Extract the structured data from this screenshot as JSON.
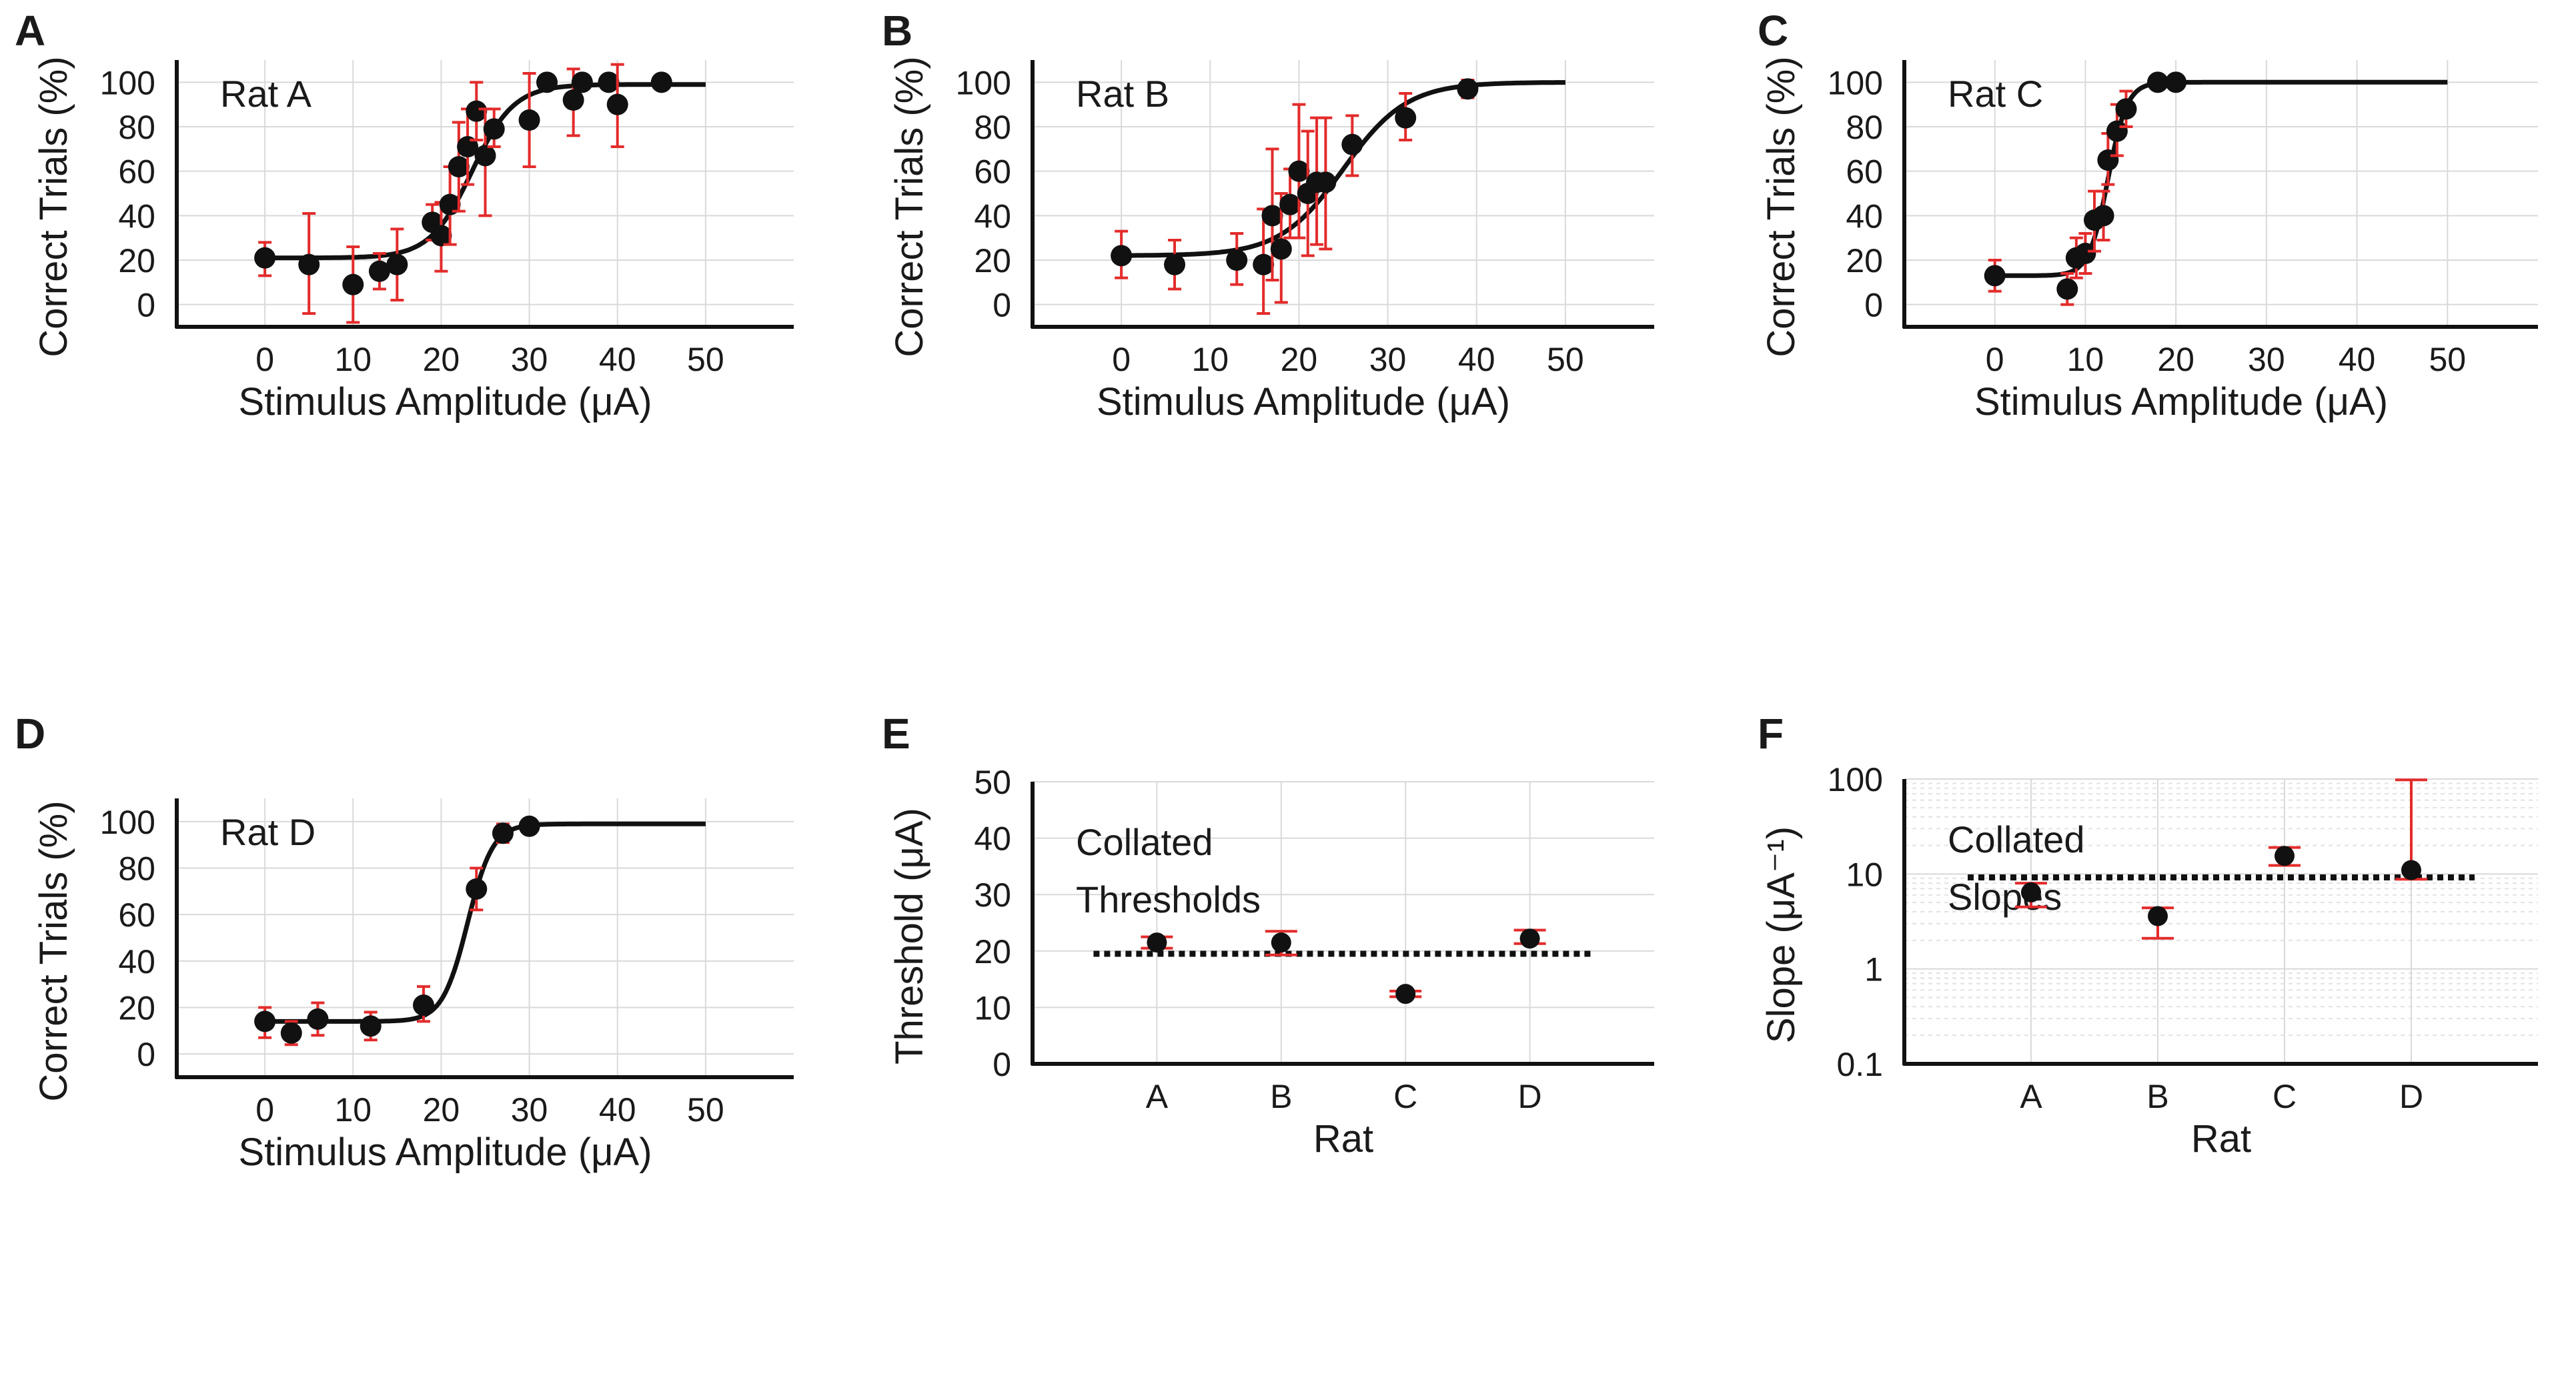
{
  "figure": {
    "panel_labels": [
      "A",
      "B",
      "C",
      "D",
      "E",
      "F"
    ],
    "colors": {
      "marker": "#111111",
      "fit_line": "#111111",
      "error_bar": "#e32b2b",
      "grid": "#d9d9d9",
      "mean_line": "#111111"
    }
  },
  "chart_data": [
    {
      "panel": "A",
      "type": "scatter",
      "annotation": "Rat A",
      "xlabel": "Stimulus Amplitude (μA)",
      "ylabel": "Correct Trials (%)",
      "xlim": [
        -10,
        60
      ],
      "ylim": [
        -10,
        110
      ],
      "xticks": [
        0,
        10,
        20,
        30,
        40,
        50
      ],
      "yticks": [
        0,
        20,
        40,
        60,
        80,
        100
      ],
      "points": [
        {
          "x": 0,
          "y": 21,
          "lo": 13,
          "hi": 28
        },
        {
          "x": 5,
          "y": 18,
          "lo": -4,
          "hi": 41
        },
        {
          "x": 10,
          "y": 9,
          "lo": -8,
          "hi": 26
        },
        {
          "x": 13,
          "y": 15,
          "lo": 7,
          "hi": 23
        },
        {
          "x": 15,
          "y": 18,
          "lo": 2,
          "hi": 34
        },
        {
          "x": 19,
          "y": 37,
          "lo": 29,
          "hi": 45
        },
        {
          "x": 20,
          "y": 31,
          "lo": 15,
          "hi": 46
        },
        {
          "x": 21,
          "y": 45,
          "lo": 27,
          "hi": 62
        },
        {
          "x": 22,
          "y": 62,
          "lo": 42,
          "hi": 82
        },
        {
          "x": 23,
          "y": 71,
          "lo": 54,
          "hi": 88
        },
        {
          "x": 24,
          "y": 87,
          "lo": 74,
          "hi": 100
        },
        {
          "x": 25,
          "y": 67,
          "lo": 40,
          "hi": 88
        },
        {
          "x": 26,
          "y": 79,
          "lo": 71,
          "hi": 88
        },
        {
          "x": 30,
          "y": 83,
          "lo": 62,
          "hi": 104
        },
        {
          "x": 32,
          "y": 100
        },
        {
          "x": 35,
          "y": 92,
          "lo": 76,
          "hi": 106
        },
        {
          "x": 36,
          "y": 100
        },
        {
          "x": 39,
          "y": 100
        },
        {
          "x": 40,
          "y": 90,
          "lo": 71,
          "hi": 108
        },
        {
          "x": 45,
          "y": 100
        }
      ],
      "fit": {
        "base": 21,
        "top": 99,
        "x50": 23.5,
        "k": 0.42,
        "x_range": [
          0,
          50
        ]
      }
    },
    {
      "panel": "B",
      "type": "scatter",
      "annotation": "Rat B",
      "xlabel": "Stimulus Amplitude (μA)",
      "ylabel": "Correct Trials (%)",
      "xlim": [
        -10,
        60
      ],
      "ylim": [
        -10,
        110
      ],
      "xticks": [
        0,
        10,
        20,
        30,
        40,
        50
      ],
      "yticks": [
        0,
        20,
        40,
        60,
        80,
        100
      ],
      "points": [
        {
          "x": 0,
          "y": 22,
          "lo": 12,
          "hi": 33
        },
        {
          "x": 6,
          "y": 18,
          "lo": 7,
          "hi": 29
        },
        {
          "x": 13,
          "y": 20,
          "lo": 9,
          "hi": 32
        },
        {
          "x": 16,
          "y": 18,
          "lo": -4,
          "hi": 43
        },
        {
          "x": 17,
          "y": 40,
          "lo": 11,
          "hi": 70
        },
        {
          "x": 18,
          "y": 25,
          "lo": 1,
          "hi": 50
        },
        {
          "x": 19,
          "y": 45,
          "lo": 30,
          "hi": 61
        },
        {
          "x": 20,
          "y": 60,
          "lo": 30,
          "hi": 90
        },
        {
          "x": 21,
          "y": 50,
          "lo": 22,
          "hi": 78
        },
        {
          "x": 22,
          "y": 55,
          "lo": 27,
          "hi": 84
        },
        {
          "x": 23,
          "y": 55,
          "lo": 25,
          "hi": 84
        },
        {
          "x": 26,
          "y": 72,
          "lo": 58,
          "hi": 85
        },
        {
          "x": 32,
          "y": 84,
          "lo": 74,
          "hi": 95
        },
        {
          "x": 39,
          "y": 97,
          "lo": 93,
          "hi": 101
        }
      ],
      "fit": {
        "base": 22,
        "top": 100,
        "x50": 25,
        "k": 0.28,
        "x_range": [
          0,
          50
        ]
      }
    },
    {
      "panel": "C",
      "type": "scatter",
      "annotation": "Rat C",
      "xlabel": "Stimulus Amplitude (μA)",
      "ylabel": "Correct Trials (%)",
      "xlim": [
        -10,
        60
      ],
      "ylim": [
        -10,
        110
      ],
      "xticks": [
        0,
        10,
        20,
        30,
        40,
        50
      ],
      "yticks": [
        0,
        20,
        40,
        60,
        80,
        100
      ],
      "points": [
        {
          "x": 0,
          "y": 13,
          "lo": 6,
          "hi": 20
        },
        {
          "x": 8,
          "y": 7,
          "lo": 0,
          "hi": 14
        },
        {
          "x": 9,
          "y": 21,
          "lo": 12,
          "hi": 30
        },
        {
          "x": 10,
          "y": 23,
          "lo": 14,
          "hi": 32
        },
        {
          "x": 11,
          "y": 38,
          "lo": 24,
          "hi": 51
        },
        {
          "x": 12,
          "y": 40,
          "lo": 29,
          "hi": 51
        },
        {
          "x": 12.5,
          "y": 65,
          "lo": 54,
          "hi": 77
        },
        {
          "x": 13.5,
          "y": 78,
          "lo": 67,
          "hi": 90
        },
        {
          "x": 14.5,
          "y": 88,
          "lo": 80,
          "hi": 96
        },
        {
          "x": 18,
          "y": 100
        },
        {
          "x": 20,
          "y": 100
        }
      ],
      "fit": {
        "base": 13,
        "top": 100,
        "x50": 12.5,
        "k": 0.95,
        "x_range": [
          0,
          50
        ]
      }
    },
    {
      "panel": "D",
      "type": "scatter",
      "annotation": "Rat D",
      "xlabel": "Stimulus Amplitude (μA)",
      "ylabel": "Correct Trials (%)",
      "xlim": [
        -10,
        60
      ],
      "ylim": [
        -10,
        110
      ],
      "xticks": [
        0,
        10,
        20,
        30,
        40,
        50
      ],
      "yticks": [
        0,
        20,
        40,
        60,
        80,
        100
      ],
      "points": [
        {
          "x": 0,
          "y": 14,
          "lo": 7,
          "hi": 20
        },
        {
          "x": 3,
          "y": 9,
          "lo": 4,
          "hi": 14
        },
        {
          "x": 6,
          "y": 15,
          "lo": 8,
          "hi": 22
        },
        {
          "x": 12,
          "y": 12,
          "lo": 6,
          "hi": 18
        },
        {
          "x": 18,
          "y": 21,
          "lo": 14,
          "hi": 29
        },
        {
          "x": 24,
          "y": 71,
          "lo": 62,
          "hi": 80
        },
        {
          "x": 27,
          "y": 95,
          "lo": 91,
          "hi": 99
        },
        {
          "x": 30,
          "y": 98,
          "lo": 95,
          "hi": 100
        }
      ],
      "fit": {
        "base": 14,
        "top": 99,
        "x50": 23,
        "k": 0.7,
        "x_range": [
          0,
          50
        ]
      }
    },
    {
      "panel": "E",
      "type": "scatter",
      "annotation": [
        "Collated",
        "Thresholds"
      ],
      "xlabel": "Rat",
      "ylabel": "Threshold (μA)",
      "categories": [
        "A",
        "B",
        "C",
        "D"
      ],
      "ylim": [
        0,
        50
      ],
      "yticks": [
        0,
        10,
        20,
        30,
        40,
        50
      ],
      "points": [
        {
          "cat": "A",
          "y": 21.5,
          "lo": 20.5,
          "hi": 22.5
        },
        {
          "cat": "B",
          "y": 21.5,
          "lo": 19.3,
          "hi": 23.5
        },
        {
          "cat": "C",
          "y": 12.4,
          "lo": 11.9,
          "hi": 12.9
        },
        {
          "cat": "D",
          "y": 22.2,
          "lo": 21.3,
          "hi": 23.7
        }
      ],
      "mean_line": 19.5
    },
    {
      "panel": "F",
      "type": "scatter",
      "annotation": [
        "Collated",
        "Slopes"
      ],
      "xlabel": "Rat",
      "ylabel": "Slope (μA⁻¹)",
      "categories": [
        "A",
        "B",
        "C",
        "D"
      ],
      "yscale": "log",
      "ylim": [
        0.1,
        100
      ],
      "yticks": [
        0.1,
        1,
        10,
        100
      ],
      "ytick_labels": [
        "0.1",
        "1",
        "10",
        "100"
      ],
      "points": [
        {
          "cat": "A",
          "y": 6.4,
          "lo": 4.5,
          "hi": 8
        },
        {
          "cat": "B",
          "y": 3.6,
          "lo": 2.1,
          "hi": 4.4
        },
        {
          "cat": "C",
          "y": 15.5,
          "lo": 12.3,
          "hi": 19
        },
        {
          "cat": "D",
          "y": 11,
          "lo": 8.8,
          "hi": 98
        }
      ],
      "mean_line": 9.2
    }
  ]
}
